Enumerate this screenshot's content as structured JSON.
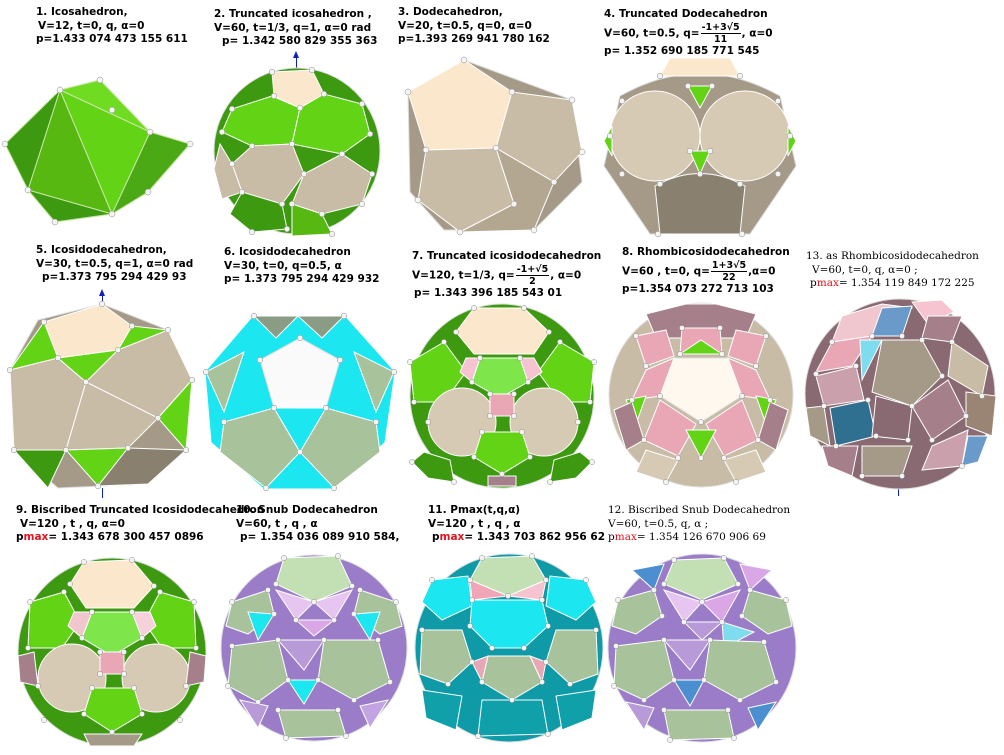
{
  "colors": {
    "green": "#63d316",
    "dark_green": "#3d9a10",
    "cream": "#fbe8cc",
    "taupe": "#c9bca6",
    "gray_brown": "#a59a88",
    "pink": "#e9a7b6",
    "mauve": "#a57f8a",
    "cyan": "#1ce6ef",
    "sage": "#a8c39c",
    "lavender": "#b99ad8",
    "blue": "#4b8fd0",
    "teal": "#158a92",
    "vertex": "#f4f4f4",
    "arrow": "#1020c0",
    "red_label": "#e0141e"
  },
  "panels": [
    {
      "id": "p1",
      "title": "1.  Icosahedron,",
      "line2": "V=12,   t=0,  q,   α=0",
      "line3": "p=1.433 074 473 155 611",
      "scheme": "icosa"
    },
    {
      "id": "p2",
      "title": "2.  Truncated icosahedron ,",
      "line2": "V=60,  t=1/3,  q=1,  α=0 rad",
      "line3": "p=  1.342 580 829 355 363",
      "scheme": "trunc_ico"
    },
    {
      "id": "p3",
      "title": "3.  Dodecahedron,",
      "line2": "V=20,  t=0.5,  q=0,  α=0",
      "line3": "p=1.393 269 941 780 162",
      "scheme": "dodeca"
    },
    {
      "id": "p4",
      "title": "4.  Truncated Dodecahedron",
      "line2_pre": "V=60,  t=0.5,  q=",
      "frac_num": "-1+3√5",
      "frac_den": "11",
      "line2_post": ",  α=0",
      "line3": "p=     1.352 690 185 771 545",
      "scheme": "trunc_dodeca"
    },
    {
      "id": "p5",
      "title": "5.   Icosidodecahedron,",
      "line2": "V=30,  t=0.5,  q=1,  α=0 rad",
      "line3": "p=1.373 795 294 429 93",
      "scheme": "icosidodeca"
    },
    {
      "id": "p6",
      "title": "6.     Icosidodecahedron",
      "line2": "V=30,  t=0,  q=0.5,  α",
      "line3": "p=  1.373 795 294 429 932",
      "scheme": "icosidodeca_cyan"
    },
    {
      "id": "p7",
      "title": "7.  Truncated icosidodecahedron",
      "line2_pre": "V=120,  t=1/3,  q=",
      "frac_num": "-1+√5",
      "frac_den": "2",
      "line2_post": ",  α=0",
      "line3": "p=  1.343 396 185 543 01",
      "scheme": "trunc_icosidodeca"
    },
    {
      "id": "p8",
      "title": "8.  Rhombicosidodecahedron",
      "line2_pre": "V=60 ,  t=0,  q=",
      "frac_num": "1+3√5",
      "frac_den": "22",
      "line2_post": ",α=0",
      "line3": "p=1.354 073 272 713 103",
      "scheme": "rhombi"
    },
    {
      "id": "p13",
      "title": "13.  as Rhombicosidodecahedron",
      "line2": "V=60,        t=0,      q,       α=0 ;",
      "line3_pre": "p",
      "line3_red": "max",
      "line3_post": "=   1.354 119 849 172 225",
      "scheme": "as_rhombi"
    },
    {
      "id": "p9",
      "title": "9.  Biscribed Truncated Icosidodecahedron",
      "line2": "V=120 ,  t ,  q,  α=0",
      "line3_pre": "p",
      "line3_red": "max",
      "line3_post": "=  1.343 678 300 457 0896",
      "scheme": "biscribed_ti"
    },
    {
      "id": "p10",
      "title": "10.  Snub Dodecahedron",
      "line2": "V=60,  t ,  q ,  α",
      "line3": "p=  1.354 036 089 910 584,",
      "scheme": "snub"
    },
    {
      "id": "p11",
      "title": "11.  Pmax(t,q,α)",
      "line2": "V=120 ,   t  ,  q  ,  α",
      "line3_pre": "p",
      "line3_red": "max",
      "line3_post": "=  1.343 703 862 956 62",
      "scheme": "pmax"
    },
    {
      "id": "p12",
      "title": "12.  Biscribed Snub Dodecahedron",
      "line2": "V=60,         t=0.5,  q,  α ;",
      "line3_pre": "p",
      "line3_red": "max",
      "line3_post": "=  1.354 126 670 906 69",
      "scheme": "biscribed_snub"
    }
  ]
}
